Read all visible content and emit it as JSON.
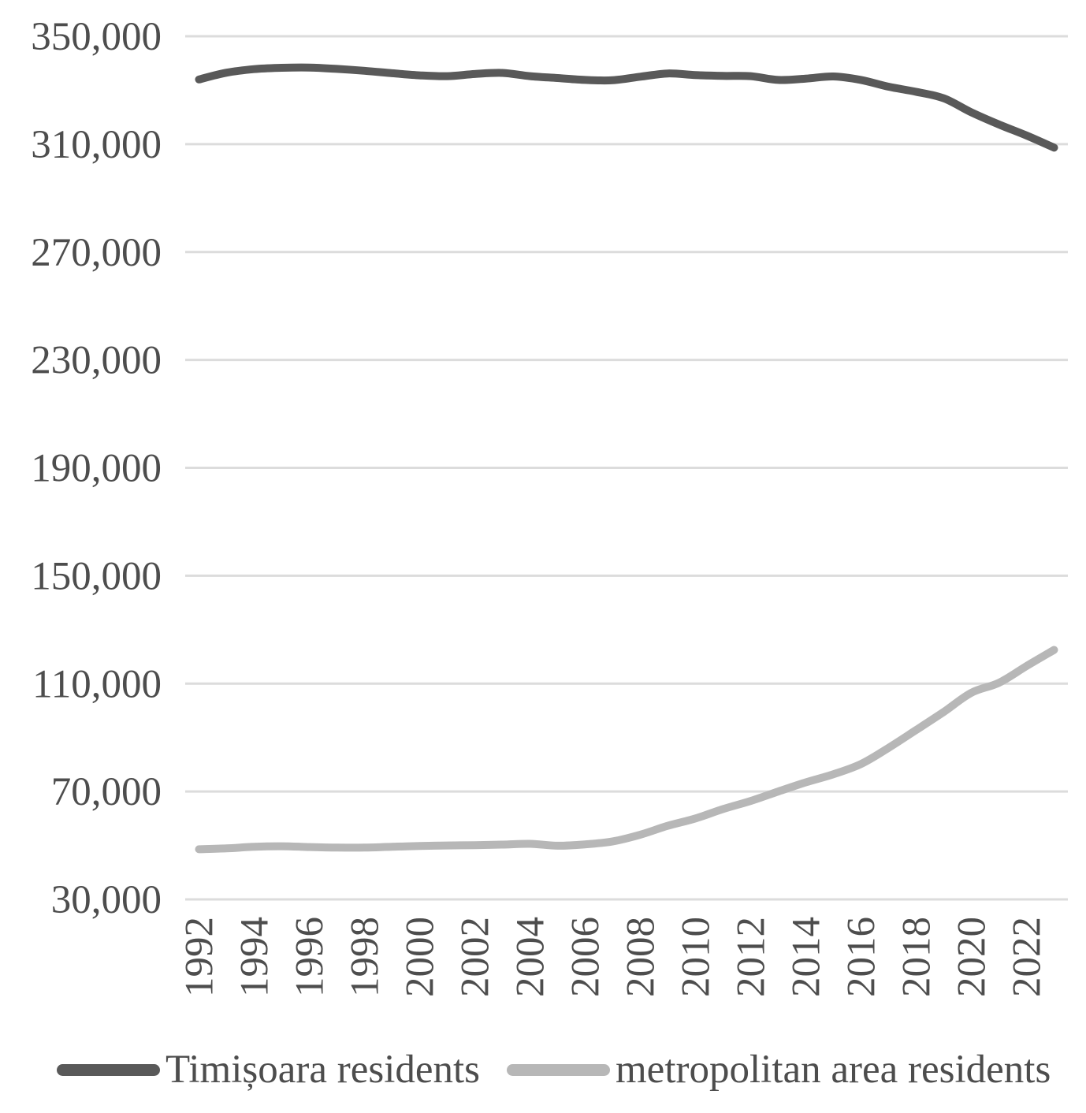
{
  "chart_data": {
    "type": "line",
    "title": "",
    "xlabel": "",
    "ylabel": "",
    "x": [
      1992,
      1993,
      1994,
      1995,
      1996,
      1997,
      1998,
      1999,
      2000,
      2001,
      2002,
      2003,
      2004,
      2005,
      2006,
      2007,
      2008,
      2009,
      2010,
      2011,
      2012,
      2013,
      2014,
      2015,
      2016,
      2017,
      2018,
      2019,
      2020,
      2021,
      2022,
      2023
    ],
    "x_tick_labels": [
      "1992",
      "1994",
      "1996",
      "1998",
      "2000",
      "2002",
      "2004",
      "2006",
      "2008",
      "2010",
      "2012",
      "2014",
      "2016",
      "2018",
      "2020",
      "2022"
    ],
    "series": [
      {
        "name": "Timișoara residents",
        "color": "#595959",
        "values": [
          334000,
          336500,
          337800,
          338300,
          338400,
          337900,
          337200,
          336300,
          335500,
          335200,
          336000,
          336400,
          335200,
          334500,
          333800,
          333700,
          335000,
          336200,
          335600,
          335300,
          335200,
          333800,
          334300,
          335100,
          333800,
          331300,
          329400,
          327000,
          321800,
          317300,
          313200,
          308700
        ]
      },
      {
        "name": "metropolitan area residents",
        "color": "#b7b7b7",
        "values": [
          48600,
          48900,
          49500,
          49700,
          49400,
          49200,
          49200,
          49500,
          49800,
          50000,
          50100,
          50300,
          50600,
          49900,
          50400,
          51500,
          54000,
          57300,
          60000,
          63500,
          66500,
          70000,
          73400,
          76400,
          80200,
          86200,
          92800,
          99500,
          106600,
          110300,
          116500,
          122500
        ]
      }
    ],
    "y_axis": {
      "min": 30000,
      "max": 350000,
      "step": 40000,
      "tick_labels": [
        "350,000",
        "310,000",
        "270,000",
        "230,000",
        "190,000",
        "150,000",
        "110,000",
        "70,000",
        "30,000"
      ]
    },
    "grid": true,
    "gridline_color": "#dcdcdc",
    "axis_text_color": "#4d4d4d",
    "legend_position": "bottom"
  }
}
